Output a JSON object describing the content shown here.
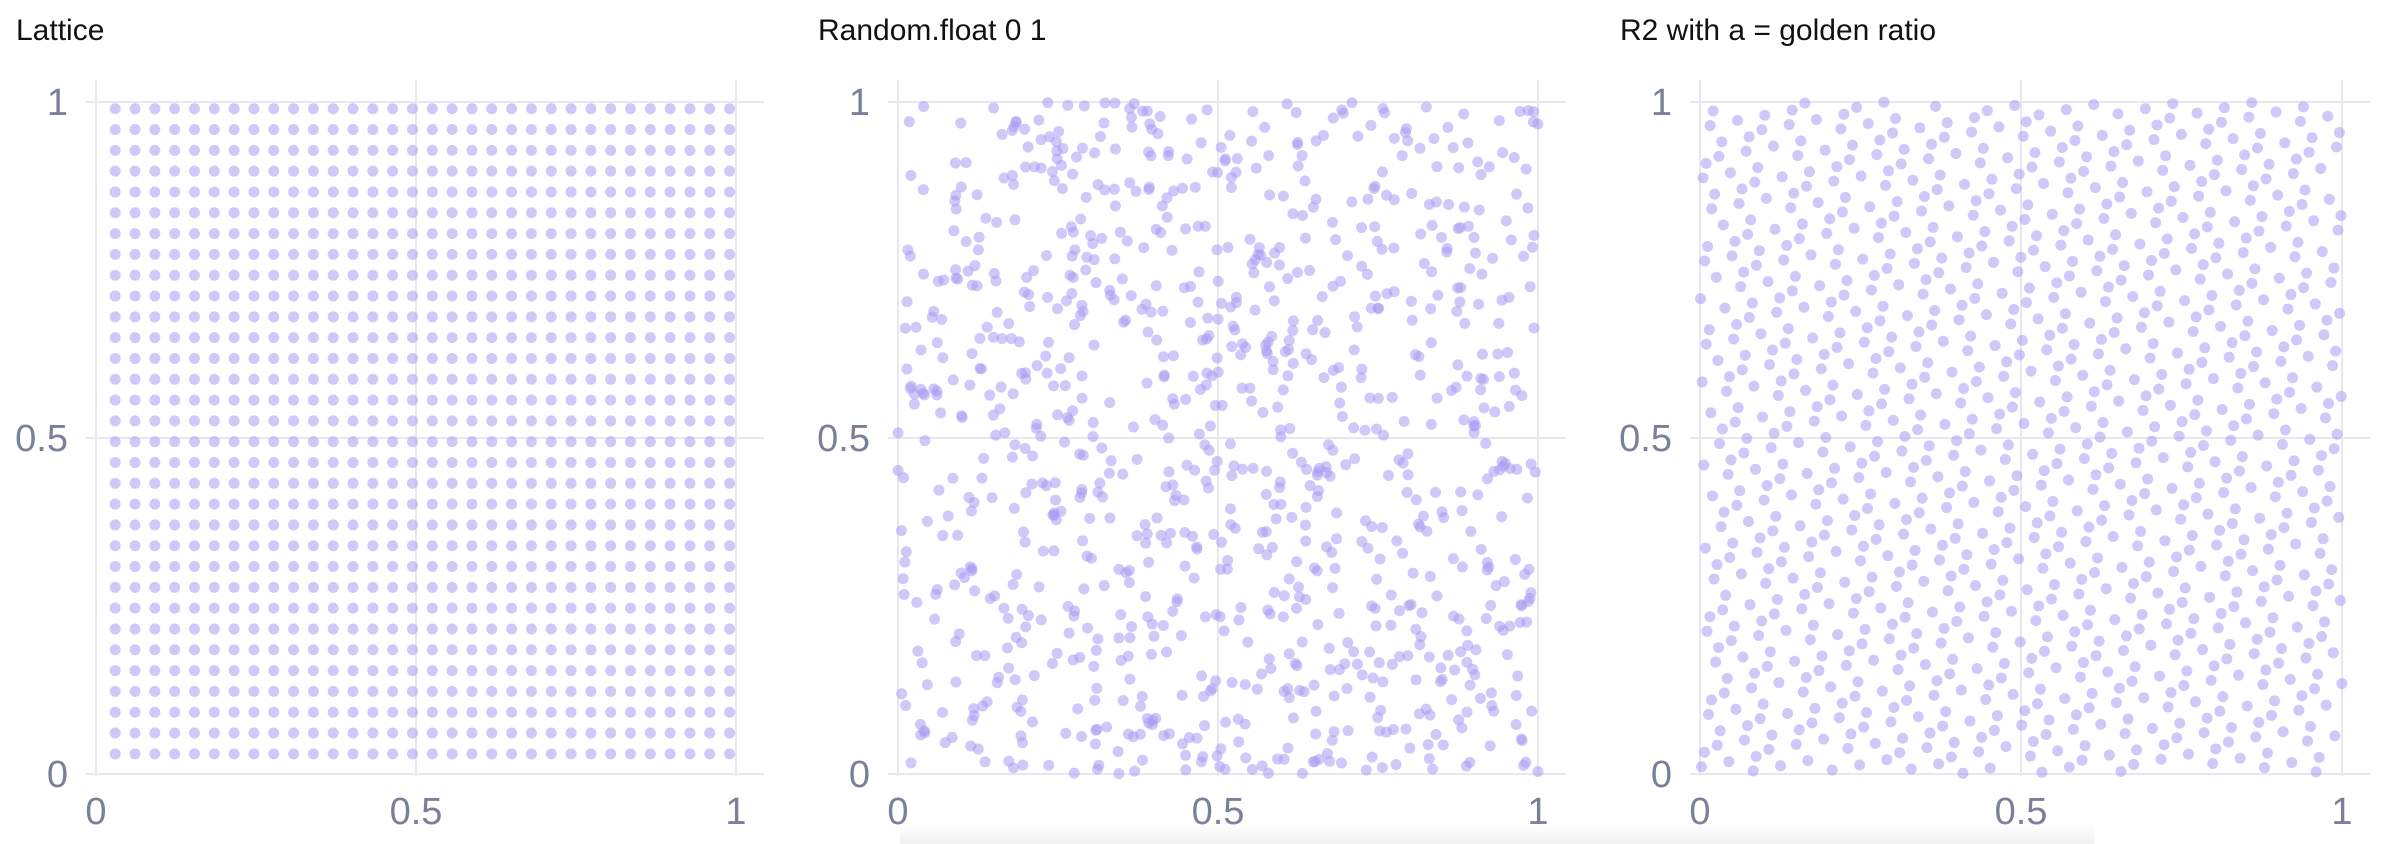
{
  "colors": {
    "point": "#a89bf2",
    "grid": "#e7e8ee",
    "tick": "#7b809a"
  },
  "chart_data": [
    {
      "type": "scatter",
      "title": "Lattice",
      "xlabel": "",
      "ylabel": "",
      "xlim": [
        0,
        1
      ],
      "ylim": [
        0,
        1
      ],
      "x_ticks": [
        "0",
        "0.5",
        "1"
      ],
      "y_ticks": [
        "0",
        "0.5",
        "1"
      ],
      "grid": true,
      "generator": "lattice",
      "grid_size": 32,
      "x_range": [
        0.03,
        0.99
      ],
      "y_range": [
        0.03,
        0.99
      ]
    },
    {
      "type": "scatter",
      "title": "Random.float 0 1",
      "xlabel": "",
      "ylabel": "",
      "xlim": [
        0,
        1
      ],
      "ylim": [
        0,
        1
      ],
      "x_ticks": [
        "0",
        "0.5",
        "1"
      ],
      "y_ticks": [
        "0",
        "0.5",
        "1"
      ],
      "grid": true,
      "generator": "uniform random",
      "n_points": 1000
    },
    {
      "type": "scatter",
      "title": "R2 with a = golden ratio",
      "xlabel": "",
      "ylabel": "",
      "xlim": [
        0,
        1
      ],
      "ylim": [
        0,
        1
      ],
      "x_ticks": [
        "0",
        "0.5",
        "1"
      ],
      "y_ticks": [
        "0",
        "0.5",
        "1"
      ],
      "grid": true,
      "generator": "R2 sequence (alpha = 1/golden ratio)",
      "n_points": 1000
    }
  ]
}
